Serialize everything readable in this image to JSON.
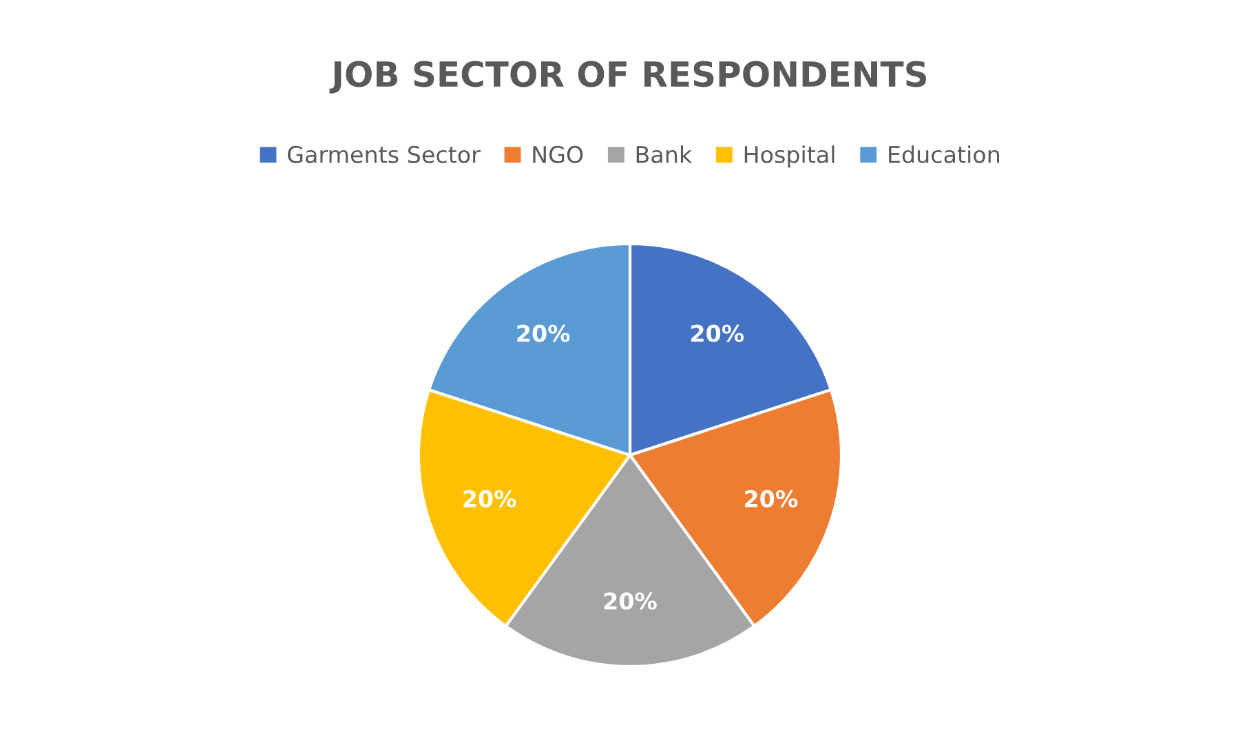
{
  "chart_data": {
    "type": "pie",
    "title": "JOB SECTOR OF RESPONDENTS",
    "categories": [
      "Garments Sector",
      "NGO",
      "Bank",
      "Hospital",
      "Education"
    ],
    "values": [
      20,
      20,
      20,
      20,
      20
    ],
    "colors": [
      "#4472c4",
      "#ed7d31",
      "#a5a5a5",
      "#ffc000",
      "#5b9bd5"
    ],
    "value_labels": [
      "20%",
      "20%",
      "20%",
      "20%",
      "20%"
    ],
    "legend": "top"
  }
}
